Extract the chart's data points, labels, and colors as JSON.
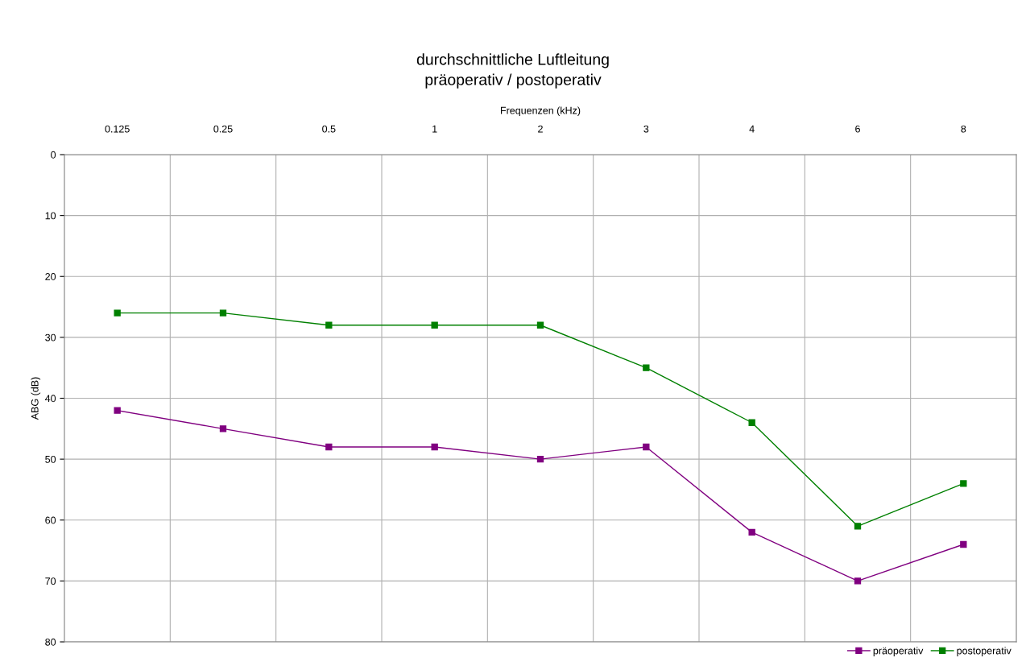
{
  "chart_data": {
    "type": "line",
    "title": "durchschnittliche Luftleitung\npräoperativ / postoperativ",
    "xlabel": "Frequenzen (kHz)",
    "ylabel": "ABG (dB)",
    "categories": [
      "0.125",
      "0.25",
      "0.5",
      "1",
      "2",
      "3",
      "4",
      "6",
      "8"
    ],
    "series": [
      {
        "name": "präoperativ",
        "color": "#800080",
        "values": [
          42,
          45,
          48,
          48,
          50,
          48,
          62,
          70,
          64
        ]
      },
      {
        "name": "postoperativ",
        "color": "#008000",
        "values": [
          26,
          26,
          28,
          28,
          28,
          35,
          44,
          61,
          54
        ]
      }
    ],
    "ylim": [
      80,
      0
    ],
    "yticks": [
      0,
      10,
      20,
      30,
      40,
      50,
      60,
      70,
      80
    ],
    "grid": true,
    "legend": "bottom right",
    "marker": "square",
    "line_style": "solid"
  }
}
